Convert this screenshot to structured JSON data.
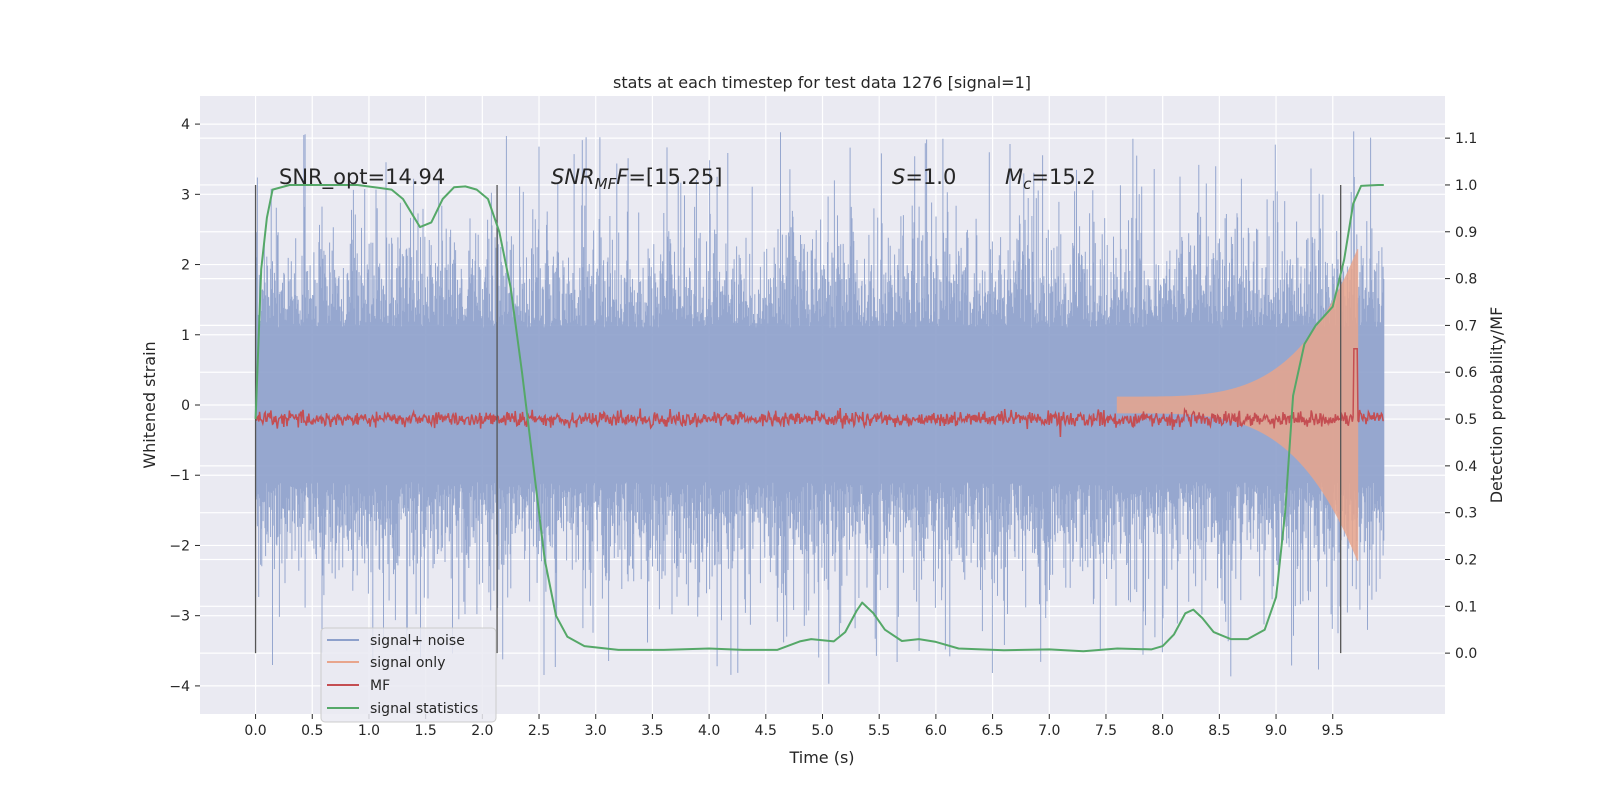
{
  "chart_data": {
    "type": "line",
    "title": "stats at each timestep for test data 1276 [signal=1]",
    "xlabel": "Time (s)",
    "ylabel": "Whitened strain",
    "y2label": "Detection probability/MF",
    "xlim": [
      -0.49,
      10.49
    ],
    "ylim": [
      -4.4,
      4.4
    ],
    "y2lim": [
      -0.13,
      1.19
    ],
    "grid": true,
    "legend_position": "lower-left",
    "x_ticks": [
      "0.0",
      "0.5",
      "1.0",
      "1.5",
      "2.0",
      "2.5",
      "3.0",
      "3.5",
      "4.0",
      "4.5",
      "5.0",
      "5.5",
      "6.0",
      "6.5",
      "7.0",
      "7.5",
      "8.0",
      "8.5",
      "9.0",
      "9.5"
    ],
    "y_ticks": [
      "4",
      "3",
      "2",
      "1",
      "0",
      "−1",
      "−2",
      "−3",
      "−4"
    ],
    "y2_ticks": [
      "1.1",
      "1.0",
      "0.9",
      "0.8",
      "0.7",
      "0.6",
      "0.5",
      "0.4",
      "0.3",
      "0.2",
      "0.1",
      "0.0"
    ],
    "annotations": {
      "snr_opt": "SNR_opt=14.94",
      "snr_mf_base": "SNR",
      "snr_mf_sub": "MF",
      "snr_mf_value": "=[15.25]",
      "s_sym": "S",
      "s_value": "=1.0",
      "mc_base": "M",
      "mc_sub": "c",
      "mc_value": "=15.2"
    },
    "vertical_lines_x": [
      0.0,
      2.13,
      9.57
    ],
    "series": [
      {
        "name": "signal+ noise",
        "color": "#8da0cb",
        "axis": "left",
        "style": "noise band, amplitude roughly ±2.5 with spikes to ±4.0"
      },
      {
        "name": "signal only",
        "color": "#e8a58c",
        "axis": "left",
        "style": "chirp growing toward merger near t=9.7 s, peak ≈ 2.2"
      },
      {
        "name": "MF",
        "color": "#c44e52",
        "axis": "right",
        "style": "noisy level ≈ 0.5, peak ≈ 0.65 at t=9.7 s"
      },
      {
        "name": "signal statistics",
        "color": "#55a868",
        "axis": "right",
        "points": [
          [
            0.0,
            0.5
          ],
          [
            0.05,
            0.82
          ],
          [
            0.1,
            0.93
          ],
          [
            0.15,
            0.99
          ],
          [
            0.3,
            1.0
          ],
          [
            0.6,
            1.0
          ],
          [
            0.9,
            1.0
          ],
          [
            1.2,
            0.99
          ],
          [
            1.3,
            0.97
          ],
          [
            1.4,
            0.93
          ],
          [
            1.45,
            0.91
          ],
          [
            1.55,
            0.92
          ],
          [
            1.65,
            0.97
          ],
          [
            1.75,
            0.995
          ],
          [
            1.85,
            0.997
          ],
          [
            1.95,
            0.99
          ],
          [
            2.05,
            0.97
          ],
          [
            2.15,
            0.9
          ],
          [
            2.25,
            0.78
          ],
          [
            2.35,
            0.6
          ],
          [
            2.45,
            0.4
          ],
          [
            2.55,
            0.2
          ],
          [
            2.65,
            0.08
          ],
          [
            2.75,
            0.035
          ],
          [
            2.9,
            0.015
          ],
          [
            3.2,
            0.007
          ],
          [
            3.6,
            0.007
          ],
          [
            4.0,
            0.01
          ],
          [
            4.3,
            0.007
          ],
          [
            4.6,
            0.007
          ],
          [
            4.8,
            0.025
          ],
          [
            4.9,
            0.03
          ],
          [
            5.1,
            0.025
          ],
          [
            5.2,
            0.045
          ],
          [
            5.3,
            0.09
          ],
          [
            5.35,
            0.108
          ],
          [
            5.45,
            0.085
          ],
          [
            5.55,
            0.05
          ],
          [
            5.7,
            0.026
          ],
          [
            5.85,
            0.03
          ],
          [
            6.0,
            0.024
          ],
          [
            6.2,
            0.01
          ],
          [
            6.6,
            0.006
          ],
          [
            7.0,
            0.008
          ],
          [
            7.3,
            0.004
          ],
          [
            7.6,
            0.01
          ],
          [
            7.9,
            0.008
          ],
          [
            8.0,
            0.015
          ],
          [
            8.1,
            0.04
          ],
          [
            8.2,
            0.085
          ],
          [
            8.27,
            0.093
          ],
          [
            8.35,
            0.075
          ],
          [
            8.45,
            0.045
          ],
          [
            8.6,
            0.03
          ],
          [
            8.75,
            0.03
          ],
          [
            8.9,
            0.05
          ],
          [
            9.0,
            0.12
          ],
          [
            9.08,
            0.3
          ],
          [
            9.15,
            0.55
          ],
          [
            9.25,
            0.66
          ],
          [
            9.35,
            0.7
          ],
          [
            9.5,
            0.74
          ],
          [
            9.6,
            0.84
          ],
          [
            9.68,
            0.96
          ],
          [
            9.75,
            0.998
          ],
          [
            9.9,
            1.0
          ],
          [
            9.95,
            1.0
          ]
        ]
      }
    ]
  }
}
